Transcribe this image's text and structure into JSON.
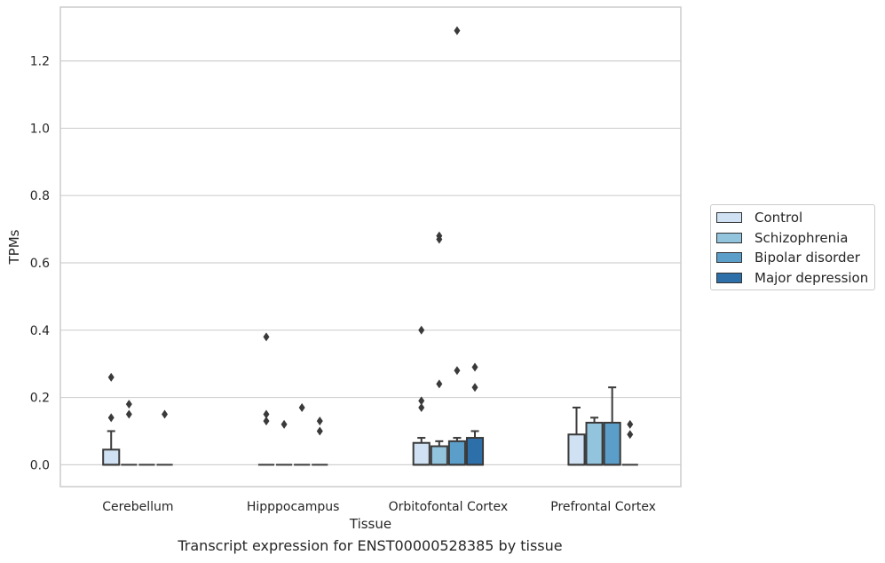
{
  "chart_data": {
    "type": "box",
    "xlabel": "Tissue",
    "ylabel": "TPMs",
    "caption": "Transcript expression for ENST00000528385 by tissue",
    "ylim": [
      -0.065,
      1.36
    ],
    "yticks": [
      "0.0",
      "0.2",
      "0.4",
      "0.6",
      "0.8",
      "1.0",
      "1.2"
    ],
    "grid": "horizontal",
    "legend_position": "right",
    "categories": [
      "Cerebellum",
      "Hipppocampus",
      "Orbitofontal Cortex",
      "Prefrontal Cortex"
    ],
    "series": [
      {
        "name": "Control",
        "color": "#cfe1f2",
        "boxes": [
          {
            "q1": 0.0,
            "median": 0.0,
            "q3": 0.045,
            "whisker_low": 0.0,
            "whisker_high": 0.1,
            "outliers": [
              0.26,
              0.14
            ]
          },
          {
            "q1": 0.0,
            "median": 0.0,
            "q3": 0.0,
            "whisker_low": 0.0,
            "whisker_high": 0.0,
            "outliers": [
              0.38,
              0.15,
              0.13
            ]
          },
          {
            "q1": 0.0,
            "median": 0.0,
            "q3": 0.065,
            "whisker_low": 0.0,
            "whisker_high": 0.08,
            "outliers": [
              0.4,
              0.19,
              0.17
            ]
          },
          {
            "q1": 0.0,
            "median": 0.0,
            "q3": 0.09,
            "whisker_low": 0.0,
            "whisker_high": 0.17,
            "outliers": []
          }
        ]
      },
      {
        "name": "Schizophrenia",
        "color": "#93c4de",
        "boxes": [
          {
            "q1": 0.0,
            "median": 0.0,
            "q3": 0.0,
            "whisker_low": 0.0,
            "whisker_high": 0.0,
            "outliers": [
              0.18,
              0.15
            ]
          },
          {
            "q1": 0.0,
            "median": 0.0,
            "q3": 0.0,
            "whisker_low": 0.0,
            "whisker_high": 0.0,
            "outliers": [
              0.12
            ]
          },
          {
            "q1": 0.0,
            "median": 0.0,
            "q3": 0.055,
            "whisker_low": 0.0,
            "whisker_high": 0.07,
            "outliers": [
              0.68,
              0.67,
              0.24
            ]
          },
          {
            "q1": 0.0,
            "median": 0.0,
            "q3": 0.125,
            "whisker_low": 0.0,
            "whisker_high": 0.14,
            "outliers": []
          }
        ]
      },
      {
        "name": "Bipolar disorder",
        "color": "#5a9ec9",
        "boxes": [
          {
            "q1": 0.0,
            "median": 0.0,
            "q3": 0.0,
            "whisker_low": 0.0,
            "whisker_high": 0.0,
            "outliers": []
          },
          {
            "q1": 0.0,
            "median": 0.0,
            "q3": 0.0,
            "whisker_low": 0.0,
            "whisker_high": 0.0,
            "outliers": [
              0.17
            ]
          },
          {
            "q1": 0.0,
            "median": 0.0,
            "q3": 0.07,
            "whisker_low": 0.0,
            "whisker_high": 0.08,
            "outliers": [
              1.29,
              0.28
            ]
          },
          {
            "q1": 0.0,
            "median": 0.0,
            "q3": 0.125,
            "whisker_low": 0.0,
            "whisker_high": 0.23,
            "outliers": []
          }
        ]
      },
      {
        "name": "Major depression",
        "color": "#2d6fa9",
        "boxes": [
          {
            "q1": 0.0,
            "median": 0.0,
            "q3": 0.0,
            "whisker_low": 0.0,
            "whisker_high": 0.0,
            "outliers": [
              0.15
            ]
          },
          {
            "q1": 0.0,
            "median": 0.0,
            "q3": 0.0,
            "whisker_low": 0.0,
            "whisker_high": 0.0,
            "outliers": [
              0.13,
              0.1
            ]
          },
          {
            "q1": 0.0,
            "median": 0.0,
            "q3": 0.08,
            "whisker_low": 0.0,
            "whisker_high": 0.1,
            "outliers": [
              0.29,
              0.23
            ]
          },
          {
            "q1": 0.0,
            "median": 0.0,
            "q3": 0.0,
            "whisker_low": 0.0,
            "whisker_high": 0.0,
            "outliers": [
              0.12,
              0.09
            ]
          }
        ]
      }
    ]
  }
}
